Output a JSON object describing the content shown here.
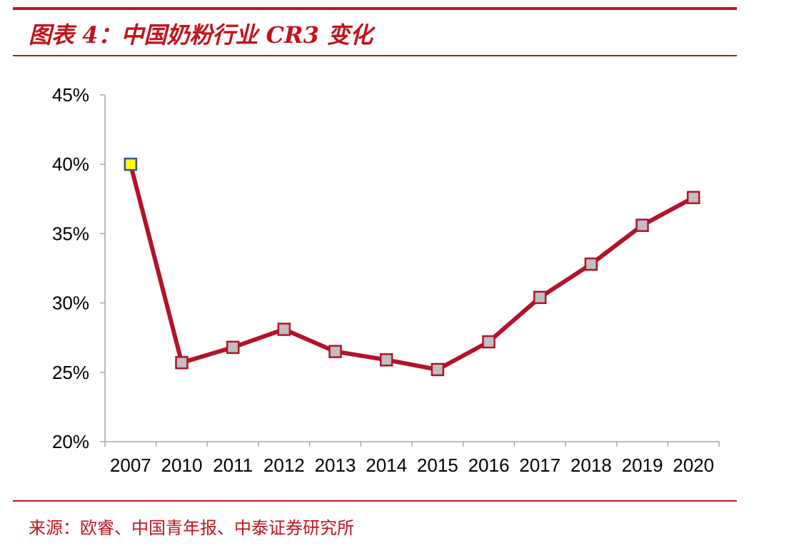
{
  "header": {
    "title": "图表 4：中国奶粉行业 CR3 变化"
  },
  "footer": {
    "source": "来源：欧睿、中国青年报、中泰证券研究所"
  },
  "colors": {
    "accent": "#c0141c",
    "line": "#b3122a",
    "marker_fill": "#bfbfbf",
    "highlight_marker_fill": "#ffff00",
    "highlight_marker_stroke": "#2f5597"
  },
  "chart_data": {
    "type": "line",
    "title": "",
    "xlabel": "",
    "ylabel": "",
    "categories": [
      "2007",
      "2010",
      "2011",
      "2012",
      "2013",
      "2014",
      "2015",
      "2016",
      "2017",
      "2018",
      "2019",
      "2020"
    ],
    "series": [
      {
        "values": [
          40.0,
          25.7,
          26.8,
          28.1,
          26.5,
          25.9,
          25.2,
          27.2,
          30.4,
          32.8,
          35.6,
          37.6
        ]
      }
    ],
    "ylim": [
      20,
      45
    ],
    "yticks": [
      "20%",
      "25%",
      "30%",
      "35%",
      "40%",
      "45%"
    ],
    "grid": false,
    "legend": "none",
    "highlighted_point": "2007"
  }
}
